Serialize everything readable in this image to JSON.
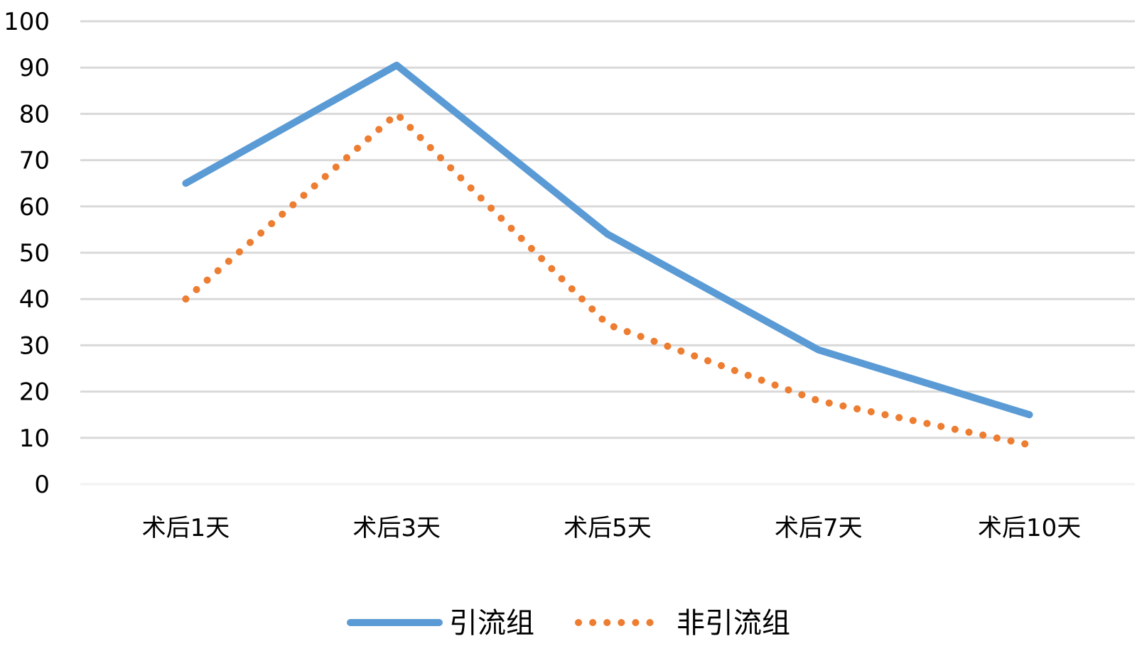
{
  "chart_data": {
    "type": "line",
    "title": "",
    "xlabel": "",
    "ylabel": "",
    "categories": [
      "术后1天",
      "术后3天",
      "术后5天",
      "术后7天",
      "术后10天"
    ],
    "ylim": [
      0,
      100
    ],
    "yticks": [
      0,
      10,
      20,
      30,
      40,
      50,
      60,
      70,
      80,
      90,
      100
    ],
    "grid": true,
    "legend_position": "bottom",
    "series": [
      {
        "name": "引流组",
        "values": [
          65,
          90.5,
          54,
          29,
          15
        ],
        "color": "#5B9BD5",
        "style": "solid"
      },
      {
        "name": "非引流组",
        "values": [
          40,
          80,
          34.5,
          18,
          8.5
        ],
        "color": "#ED7D31",
        "style": "dotted"
      }
    ]
  }
}
